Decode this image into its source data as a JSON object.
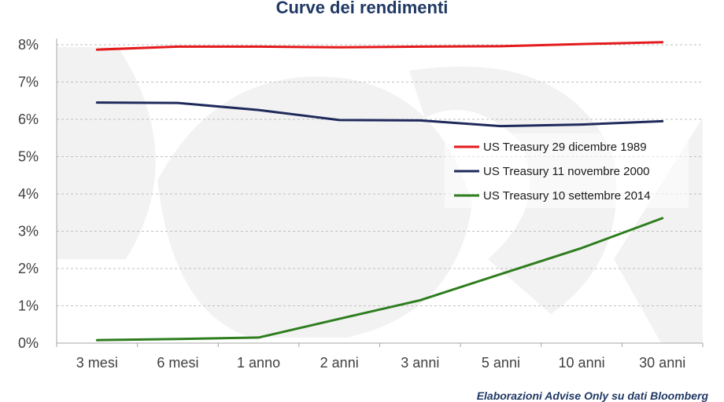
{
  "chart_data": {
    "type": "line",
    "title": "Curve dei rendimenti",
    "categories": [
      "3 mesi",
      "6 mesi",
      "1 anno",
      "2 anni",
      "3 anni",
      "5 anni",
      "10 anni",
      "30 anni"
    ],
    "yticks": [
      "0%",
      "1%",
      "2%",
      "3%",
      "4%",
      "5%",
      "6%",
      "7%",
      "8%"
    ],
    "ylim": [
      0,
      8
    ],
    "grid": true,
    "legend_position": "right",
    "series": [
      {
        "name": "US Treasury 29 dicembre 1989",
        "color": "#E41A1C",
        "values": [
          7.87,
          7.95,
          7.95,
          7.93,
          7.95,
          7.96,
          8.02,
          8.07
        ]
      },
      {
        "name": "US Treasury 11 novembre 2000",
        "color": "#1F2A5C",
        "values": [
          6.45,
          6.44,
          6.25,
          5.98,
          5.97,
          5.82,
          5.86,
          5.95
        ]
      },
      {
        "name": "US Treasury 10 settembre 2014",
        "color": "#2E7D1E",
        "values": [
          0.08,
          0.11,
          0.15,
          0.65,
          1.15,
          1.85,
          2.55,
          3.35
        ]
      }
    ],
    "source": "Elaborazioni Advise Only su dati Bloomberg"
  }
}
